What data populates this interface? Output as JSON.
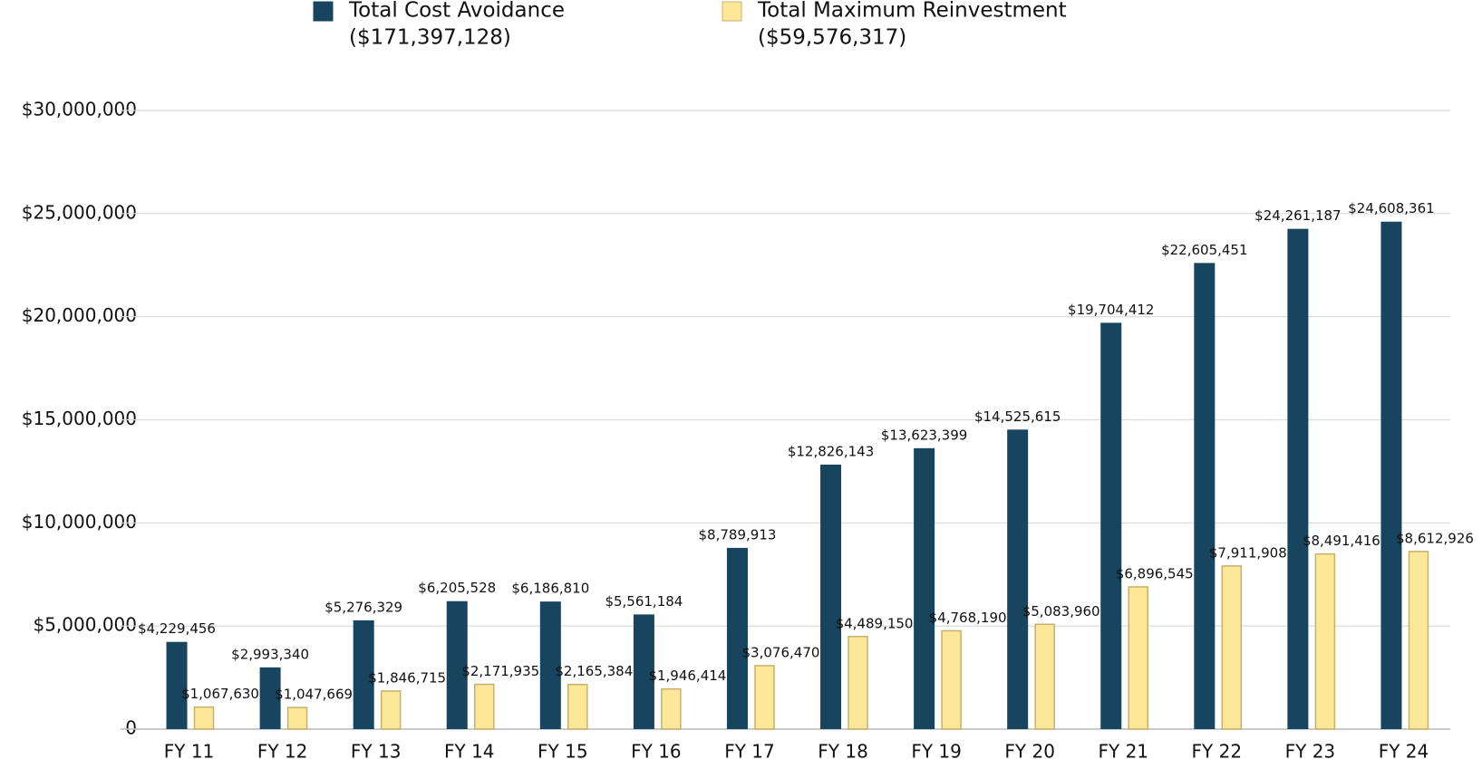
{
  "chart_data": {
    "type": "bar",
    "categories": [
      "FY 11",
      "FY 12",
      "FY 13",
      "FY 14",
      "FY 15",
      "FY 16",
      "FY 17",
      "FY 18",
      "FY 19",
      "FY 20",
      "FY 21",
      "FY 22",
      "FY 23",
      "FY 24"
    ],
    "series": [
      {
        "name": "Total Cost Avoidance",
        "total": {
          "value": 171397128,
          "label": "($171,397,128)"
        },
        "color": "#17445f",
        "values": [
          4229456,
          2993340,
          5276329,
          6205528,
          6186810,
          5561184,
          8789913,
          12826143,
          13623399,
          14525615,
          19704412,
          22605451,
          24261187,
          24608361
        ],
        "value_labels": [
          "$4,229,456",
          "$2,993,340",
          "$5,276,329",
          "$6,205,528",
          "$6,186,810",
          "$5,561,184",
          "$8,789,913",
          "$12,826,143",
          "$13,623,399",
          "$14,525,615",
          "$19,704,412",
          "$22,605,451",
          "$24,261,187",
          "$24,608,361"
        ]
      },
      {
        "name": "Total Maximum Reinvestment",
        "total": {
          "value": 59576317,
          "label": "($59,576,317)"
        },
        "color": "#fde89a",
        "edge_color": "#c8b06a",
        "values": [
          1067630,
          1047669,
          1846715,
          2171935,
          2165384,
          1946414,
          3076470,
          4489150,
          4768190,
          5083960,
          6896545,
          7911908,
          8491416,
          8612926
        ],
        "value_labels": [
          "$1,067,630",
          "$1,047,669",
          "$1,846,715",
          "$2,171,935",
          "$2,165,384",
          "$1,946,414",
          "$3,076,470",
          "$4,489,150",
          "$4,768,190",
          "$5,083,960",
          "$6,896,545",
          "$7,911,908",
          "$8,491,416",
          "$8,612,926"
        ]
      }
    ],
    "ylim": [
      0,
      30000000
    ],
    "yticks": [
      0,
      {
        "value": 5000000,
        "label": "$5,000,000"
      },
      {
        "value": 10000000,
        "label": "$10,000,000"
      },
      {
        "value": 15000000,
        "label": "$15,000,000"
      },
      {
        "value": 20000000,
        "label": "$20,000,000"
      },
      {
        "value": 25000000,
        "label": "$25,000,000"
      },
      {
        "value": 30000000,
        "label": "$30,000,000"
      }
    ],
    "grid": true
  }
}
